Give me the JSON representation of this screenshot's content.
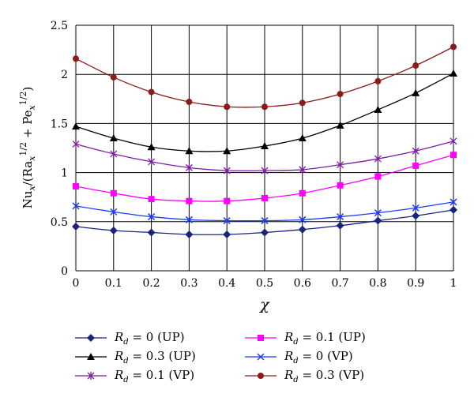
{
  "chart_data": {
    "type": "line",
    "title": "",
    "xlabel": "χ",
    "ylabel": "Nu_x / (Ra_x^{1/2} + Pe_x^{1/2})",
    "ylabel_parts": {
      "a": "Nu",
      "b": "x",
      "c": "/(Ra",
      "d": "x",
      "e": "1/2",
      "f": " + Pe",
      "g": "x",
      "h": "1/2",
      "i": ")"
    },
    "xlim": [
      0,
      1
    ],
    "ylim": [
      0,
      2.5
    ],
    "x": [
      0,
      0.1,
      0.2,
      0.3,
      0.4,
      0.5,
      0.6,
      0.7,
      0.8,
      0.9,
      1
    ],
    "x_ticks": [
      "0",
      "0.1",
      "0.2",
      "0.3",
      "0.4",
      "0.5",
      "0.6",
      "0.7",
      "0.8",
      "0.9",
      "1"
    ],
    "y_ticks": [
      "0",
      "0.5",
      "1",
      "1.5",
      "2",
      "2.5"
    ],
    "grid": true,
    "legend_placement": "bottom",
    "series": [
      {
        "name": "R_d = 0 (UP)",
        "rd": "0",
        "mode": "(UP)",
        "color": "#1a237e",
        "marker": "diamond",
        "values": [
          0.45,
          0.41,
          0.39,
          0.37,
          0.37,
          0.39,
          0.42,
          0.46,
          0.51,
          0.56,
          0.62
        ]
      },
      {
        "name": "R_d = 0.1 (UP)",
        "rd": "0.1",
        "mode": "(UP)",
        "color": "#ff00ff",
        "marker": "square",
        "values": [
          0.86,
          0.79,
          0.73,
          0.71,
          0.71,
          0.74,
          0.79,
          0.87,
          0.96,
          1.07,
          1.18
        ]
      },
      {
        "name": "R_d = 0.3 (UP)",
        "rd": "0.3",
        "mode": "(UP)",
        "color": "#000000",
        "marker": "triangle",
        "values": [
          1.47,
          1.35,
          1.26,
          1.22,
          1.22,
          1.27,
          1.35,
          1.48,
          1.64,
          1.81,
          2.01
        ]
      },
      {
        "name": "R_d = 0 (VP)",
        "rd": "0",
        "mode": "(VP)",
        "color": "#1e3cff",
        "marker": "x",
        "values": [
          0.66,
          0.6,
          0.55,
          0.52,
          0.51,
          0.51,
          0.52,
          0.55,
          0.59,
          0.64,
          0.7
        ]
      },
      {
        "name": "R_d = 0.1 (VP)",
        "rd": "0.1",
        "mode": "(VP)",
        "color": "#7b1fa2",
        "marker": "star",
        "values": [
          1.29,
          1.19,
          1.11,
          1.05,
          1.02,
          1.02,
          1.03,
          1.08,
          1.14,
          1.22,
          1.32
        ]
      },
      {
        "name": "R_d = 0.3 (VP)",
        "rd": "0.3",
        "mode": "(VP)",
        "color": "#8b1a1a",
        "marker": "circle",
        "values": [
          2.16,
          1.97,
          1.82,
          1.72,
          1.67,
          1.67,
          1.71,
          1.8,
          1.93,
          2.09,
          2.28
        ]
      }
    ],
    "legend_order": [
      0,
      1,
      2,
      3,
      4,
      5
    ]
  }
}
